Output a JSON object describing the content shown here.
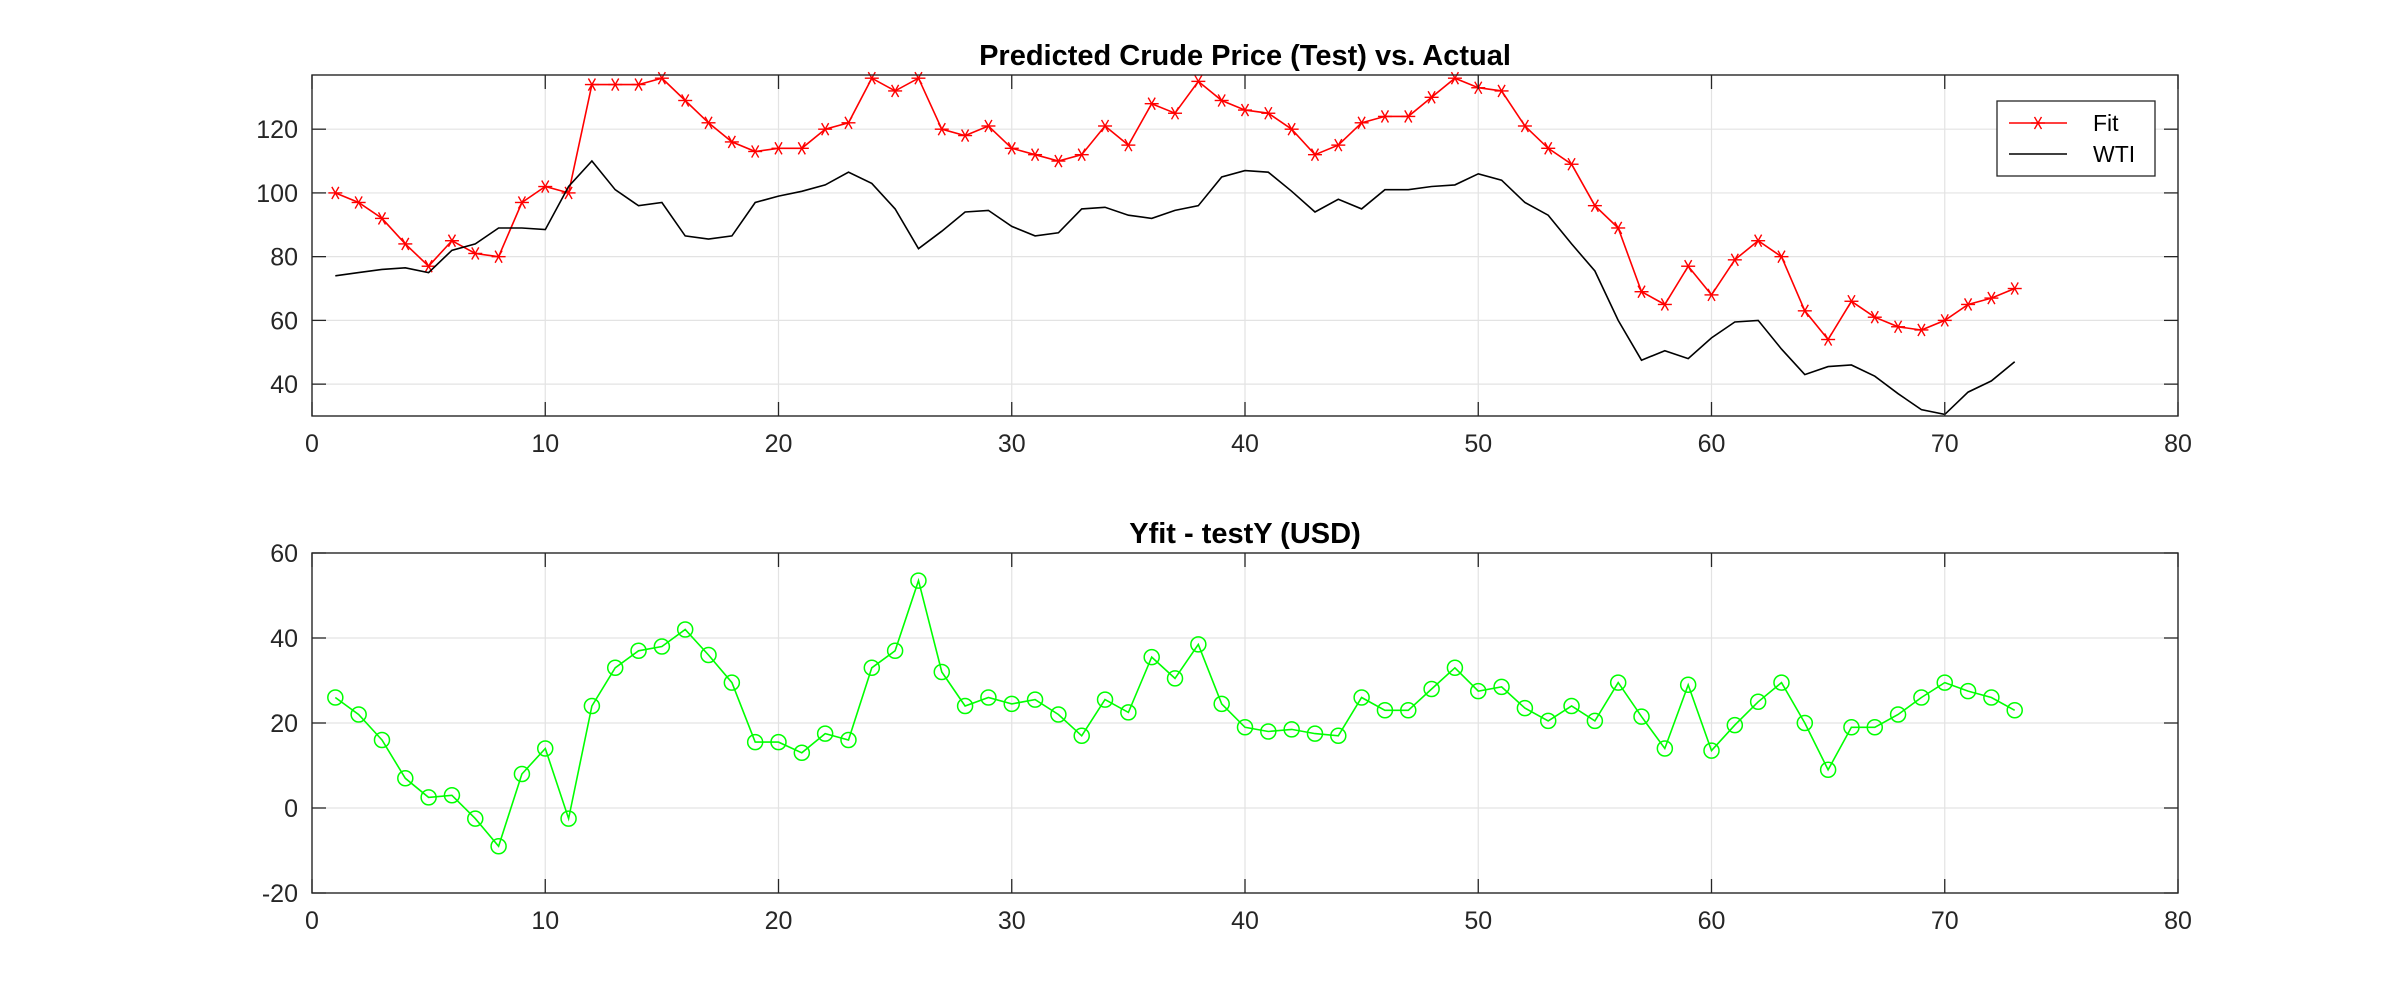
{
  "chart_data": [
    {
      "type": "line",
      "title": "Predicted Crude Price (Test) vs. Actual",
      "xlim": [
        0,
        80
      ],
      "ylim": [
        30,
        137
      ],
      "xticks": [
        0,
        10,
        20,
        30,
        40,
        50,
        60,
        70,
        80
      ],
      "yticks": [
        40,
        60,
        80,
        100,
        120
      ],
      "grid": true,
      "legend_position": "top-right",
      "x": [
        1,
        2,
        3,
        4,
        5,
        6,
        7,
        8,
        9,
        10,
        11,
        12,
        13,
        14,
        15,
        16,
        17,
        18,
        19,
        20,
        21,
        22,
        23,
        24,
        25,
        26,
        27,
        28,
        29,
        30,
        31,
        32,
        33,
        34,
        35,
        36,
        37,
        38,
        39,
        40,
        41,
        42,
        43,
        44,
        45,
        46,
        47,
        48,
        49,
        50,
        51,
        52,
        53,
        54,
        55,
        56,
        57,
        58,
        59,
        60,
        61,
        62,
        63,
        64,
        65,
        66,
        67,
        68,
        69,
        70,
        71,
        72,
        73
      ],
      "series": [
        {
          "name": "Fit",
          "color": "#ff0000",
          "marker": "asterisk",
          "values": [
            100,
            97,
            92,
            84,
            77,
            85,
            81,
            80,
            97,
            102,
            100,
            134,
            134,
            134,
            136,
            129,
            122,
            116,
            113,
            114,
            114,
            120,
            122,
            136,
            132,
            136,
            120,
            118,
            121,
            114,
            112,
            110,
            112,
            121,
            115,
            128,
            125,
            135,
            129,
            126,
            125,
            120,
            112,
            115,
            122,
            124,
            124,
            130,
            136,
            133,
            132,
            121,
            114,
            109,
            96,
            89,
            69,
            65,
            77,
            68,
            79,
            85,
            80,
            63,
            54,
            66,
            61,
            58,
            57,
            60,
            65,
            67,
            70
          ]
        },
        {
          "name": "WTI",
          "color": "#000000",
          "marker": "none",
          "values": [
            74,
            75,
            76,
            76.5,
            75,
            82,
            84,
            89,
            89,
            88.5,
            102,
            110,
            101,
            96,
            97,
            86.5,
            85.5,
            86.5,
            97,
            99,
            100.5,
            102.5,
            106.5,
            103,
            95,
            82.5,
            88,
            94,
            94.5,
            89.5,
            86.5,
            87.5,
            95,
            95.5,
            93,
            92,
            94.5,
            96,
            105,
            107,
            106.5,
            100.5,
            94,
            98,
            95,
            101,
            101,
            102,
            102.5,
            106,
            104,
            97,
            93,
            84,
            75.5,
            60,
            47.5,
            50.5,
            48,
            54.5,
            59.5,
            60,
            51,
            43,
            45.5,
            46,
            42.5,
            37,
            32,
            30.5,
            37.5,
            41,
            47
          ]
        }
      ]
    },
    {
      "type": "line",
      "title": "Yfit - testY (USD)",
      "xlim": [
        0,
        80
      ],
      "ylim": [
        -20,
        60
      ],
      "xticks": [
        0,
        10,
        20,
        30,
        40,
        50,
        60,
        70,
        80
      ],
      "yticks": [
        -20,
        0,
        20,
        40,
        60
      ],
      "grid": true,
      "x": [
        1,
        2,
        3,
        4,
        5,
        6,
        7,
        8,
        9,
        10,
        11,
        12,
        13,
        14,
        15,
        16,
        17,
        18,
        19,
        20,
        21,
        22,
        23,
        24,
        25,
        26,
        27,
        28,
        29,
        30,
        31,
        32,
        33,
        34,
        35,
        36,
        37,
        38,
        39,
        40,
        41,
        42,
        43,
        44,
        45,
        46,
        47,
        48,
        49,
        50,
        51,
        52,
        53,
        54,
        55,
        56,
        57,
        58,
        59,
        60,
        61,
        62,
        63,
        64,
        65,
        66,
        67,
        68,
        69,
        70,
        71,
        72,
        73
      ],
      "series": [
        {
          "color": "#00ff00",
          "marker": "circle",
          "values": [
            26,
            22,
            16,
            7,
            2.5,
            3,
            -2.5,
            -9,
            8,
            14,
            -2.5,
            24,
            33,
            37,
            38,
            42,
            36,
            29.5,
            15.5,
            15.5,
            13,
            17.5,
            16,
            33,
            37,
            53.5,
            32,
            24,
            26,
            24.5,
            25.5,
            22,
            17,
            25.5,
            22.5,
            35.5,
            30.5,
            38.5,
            24.5,
            19,
            18,
            18.5,
            17.5,
            17,
            26,
            23,
            23,
            28,
            33,
            27.5,
            28.5,
            23.5,
            20.5,
            24,
            20.5,
            29.5,
            21.5,
            14,
            29,
            13.5,
            19.5,
            25,
            29.5,
            20,
            9,
            19,
            19,
            22,
            26,
            29.5,
            27.5,
            26,
            23
          ]
        }
      ]
    }
  ]
}
